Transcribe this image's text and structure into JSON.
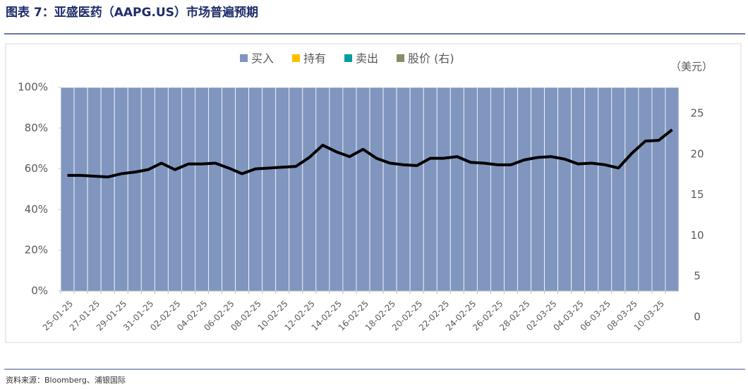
{
  "chart_data": {
    "type": "bar+line",
    "title": "图表 7：亚盛医药（AAPG.US）市场普遍预期",
    "source": "资料来源：Bloomberg、浦银国际",
    "y2_label": "（美元）",
    "categories": [
      "25-01-25",
      null,
      "27-01-25",
      null,
      "29-01-25",
      null,
      "31-01-25",
      null,
      "02-02-25",
      null,
      "04-02-25",
      null,
      "06-02-25",
      null,
      "08-02-25",
      null,
      "10-02-25",
      null,
      "12-02-25",
      null,
      "14-02-25",
      null,
      "16-02-25",
      null,
      "18-02-25",
      null,
      "20-02-25",
      null,
      "22-02-25",
      null,
      "24-02-25",
      null,
      "26-02-25",
      null,
      "28-02-25",
      null,
      "02-03-25",
      null,
      "04-03-25",
      null,
      "06-03-25",
      null,
      "08-03-25",
      null,
      "10-03-25",
      null
    ],
    "series": [
      {
        "name": "买入",
        "color": "#8096bf",
        "values": [
          100,
          100,
          100,
          100,
          100,
          100,
          100,
          100,
          100,
          100,
          100,
          100,
          100,
          100,
          100,
          100,
          100,
          100,
          100,
          100,
          100,
          100,
          100,
          100,
          100,
          100,
          100,
          100,
          100,
          100,
          100,
          100,
          100,
          100,
          100,
          100,
          100,
          100,
          100,
          100,
          100,
          100,
          100,
          100,
          100,
          100
        ]
      },
      {
        "name": "持有",
        "color": "#ffc000",
        "values": [
          0,
          0,
          0,
          0,
          0,
          0,
          0,
          0,
          0,
          0,
          0,
          0,
          0,
          0,
          0,
          0,
          0,
          0,
          0,
          0,
          0,
          0,
          0,
          0,
          0,
          0,
          0,
          0,
          0,
          0,
          0,
          0,
          0,
          0,
          0,
          0,
          0,
          0,
          0,
          0,
          0,
          0,
          0,
          0,
          0,
          0
        ]
      },
      {
        "name": "卖出",
        "color": "#009e9e",
        "values": [
          0,
          0,
          0,
          0,
          0,
          0,
          0,
          0,
          0,
          0,
          0,
          0,
          0,
          0,
          0,
          0,
          0,
          0,
          0,
          0,
          0,
          0,
          0,
          0,
          0,
          0,
          0,
          0,
          0,
          0,
          0,
          0,
          0,
          0,
          0,
          0,
          0,
          0,
          0,
          0,
          0,
          0,
          0,
          0,
          0,
          0
        ]
      },
      {
        "name": "股价 (右)",
        "color": "#000000",
        "legend_color": "#8c8c64",
        "axis": "y2",
        "values": [
          17.4,
          17.4,
          17.3,
          17.2,
          17.6,
          17.8,
          18.1,
          18.9,
          18.1,
          18.8,
          18.8,
          18.9,
          18.3,
          17.6,
          18.2,
          18.3,
          18.4,
          18.5,
          19.6,
          21.1,
          20.3,
          19.7,
          20.6,
          19.5,
          18.9,
          18.7,
          18.6,
          19.5,
          19.5,
          19.7,
          19.0,
          18.9,
          18.7,
          18.7,
          19.3,
          19.6,
          19.7,
          19.4,
          18.8,
          18.9,
          18.7,
          18.3,
          20.1,
          21.6,
          21.7,
          23.0
        ]
      }
    ],
    "ylim": [
      0,
      100
    ],
    "yticks": [
      {
        "value": 0,
        "label": "0%"
      },
      {
        "value": 20,
        "label": "20%"
      },
      {
        "value": 40,
        "label": "40%"
      },
      {
        "value": 60,
        "label": "60%"
      },
      {
        "value": 80,
        "label": "80%"
      },
      {
        "value": 100,
        "label": "100%"
      }
    ],
    "y2lim": [
      0,
      28.2
    ],
    "y2ticks": [
      0,
      5,
      10,
      15,
      20,
      25
    ]
  }
}
